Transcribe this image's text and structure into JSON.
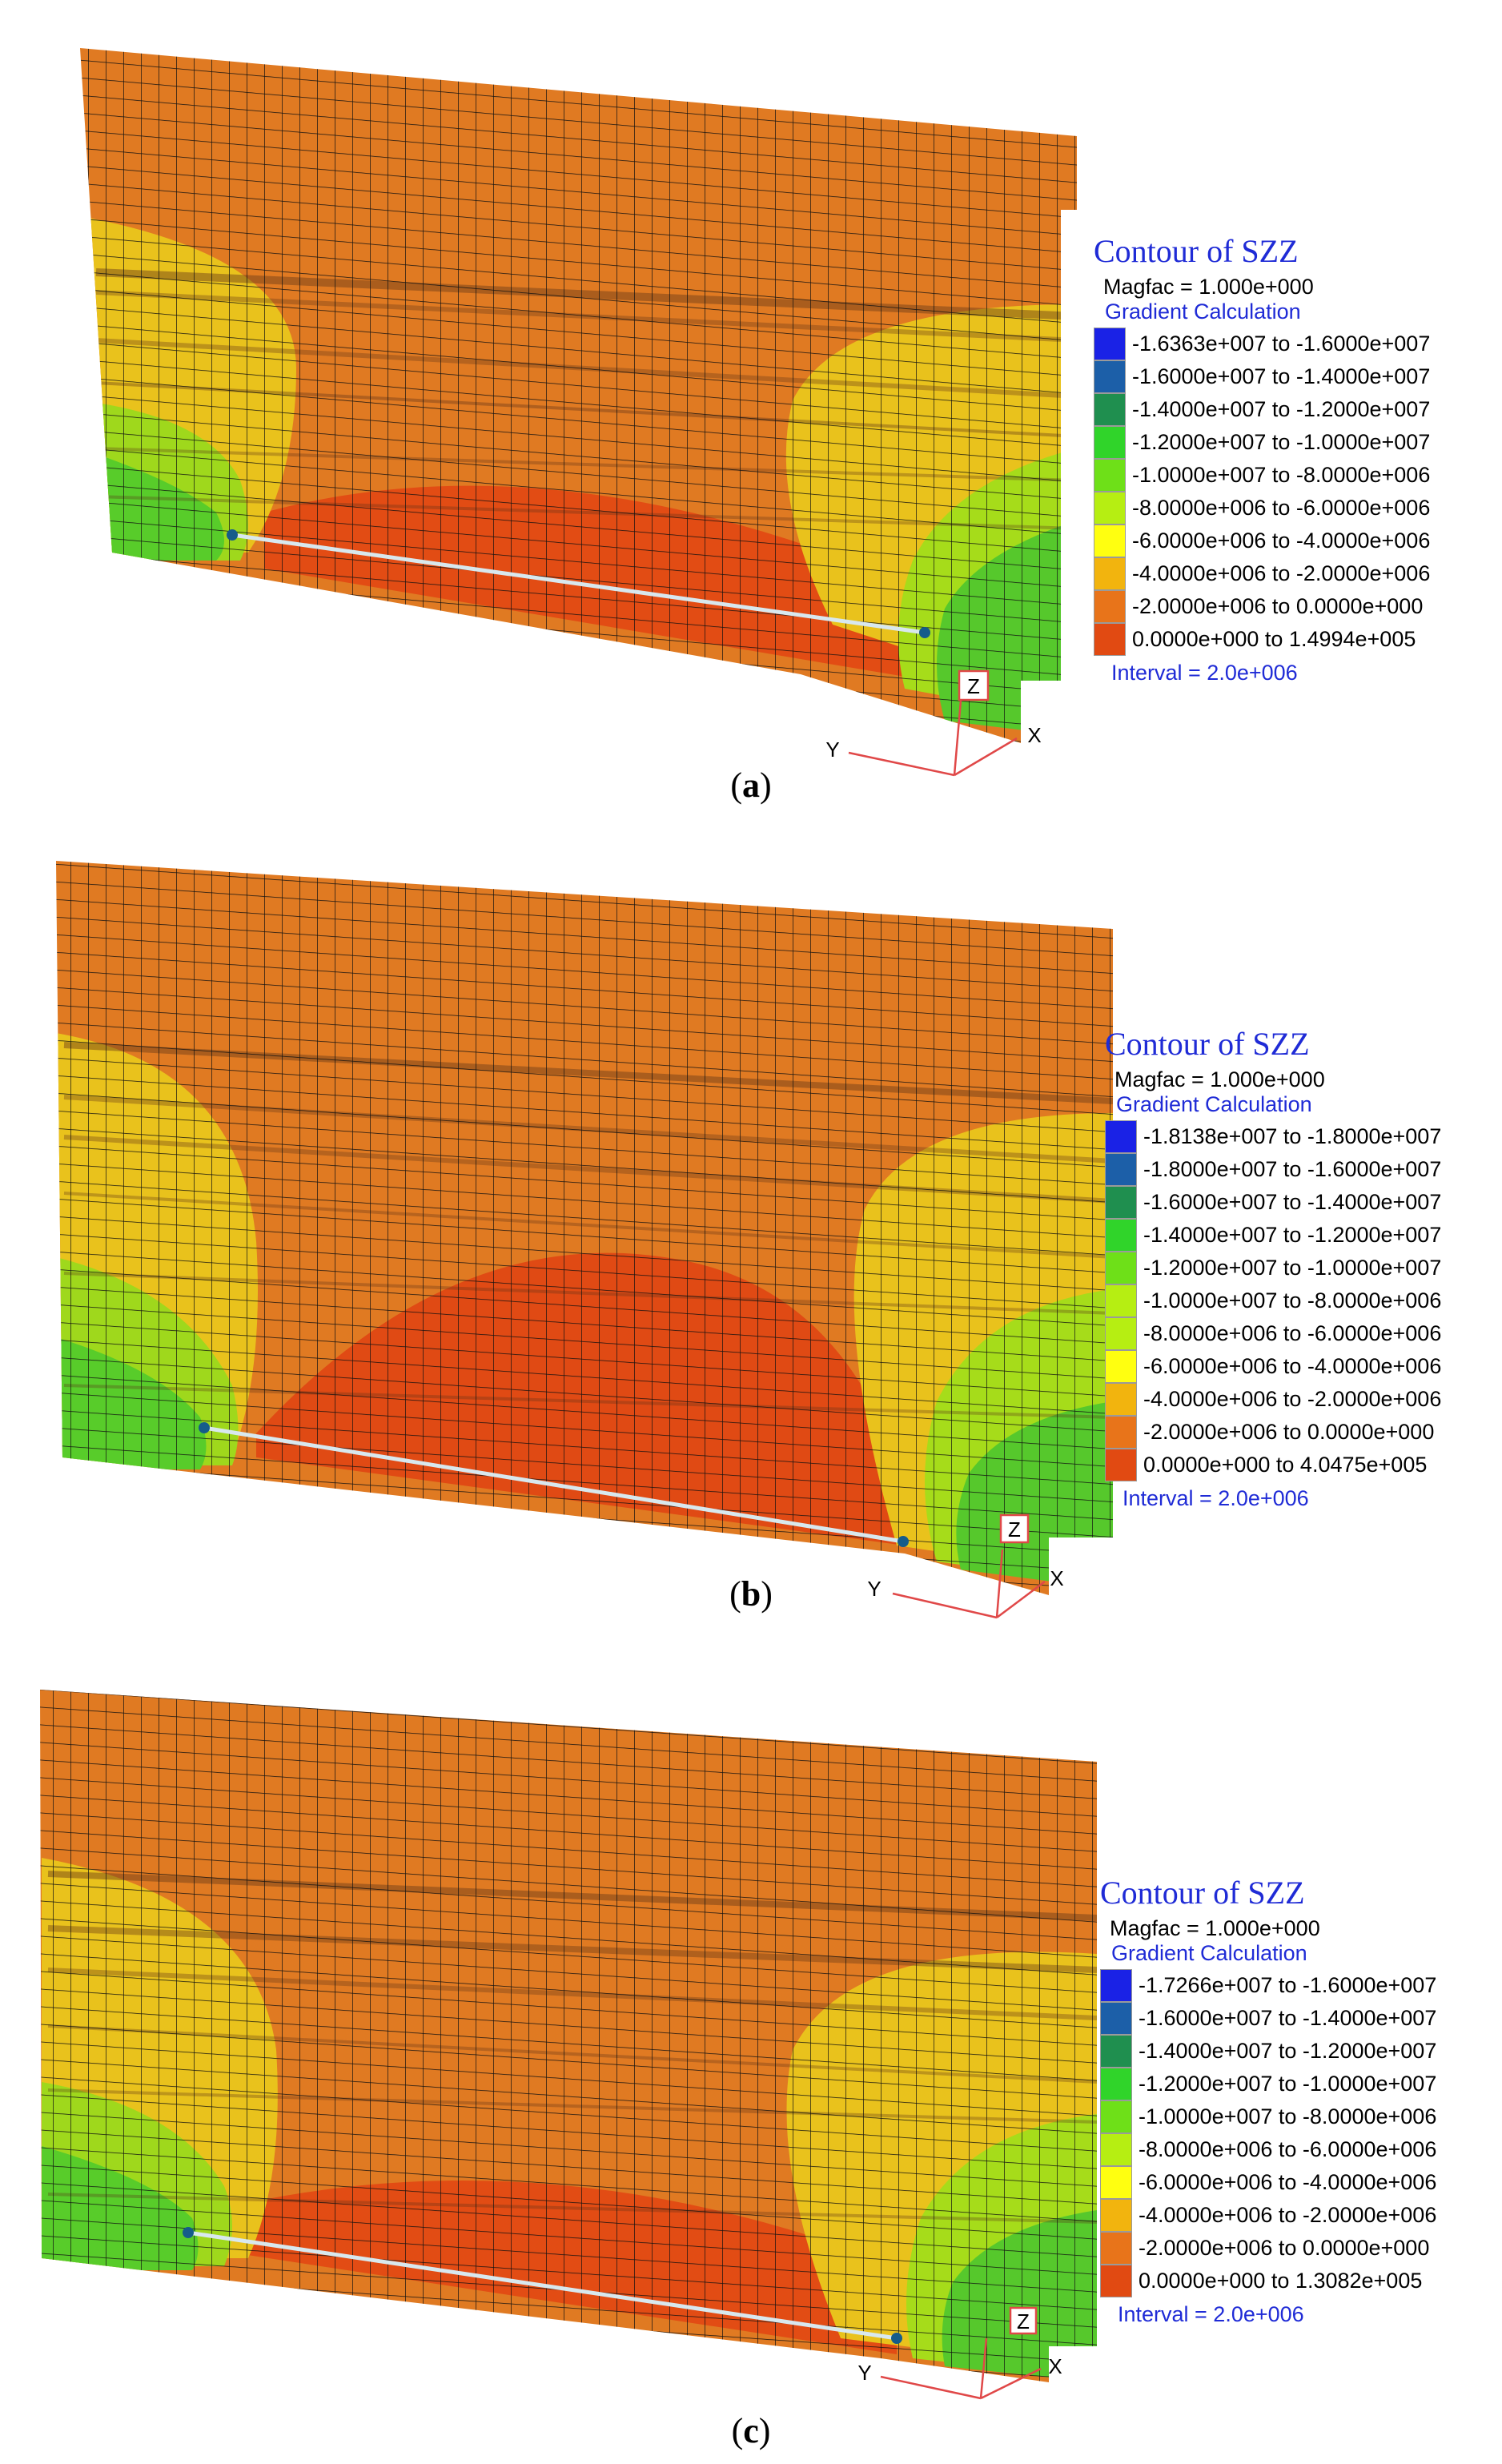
{
  "colors": [
    "#1a22e6",
    "#1c5fa8",
    "#1f8f4f",
    "#30d42a",
    "#6ee018",
    "#b6ee12",
    "#ffff10",
    "#f2b40e",
    "#e8741a",
    "#e14a12"
  ],
  "panels": [
    {
      "caption": "a",
      "legend": {
        "title": "Contour of SZZ",
        "magfac": "Magfac =  1.000e+000",
        "gradient": "Gradient Calculation",
        "interval": "Interval =  2.0e+006",
        "ranges": [
          "-1.6363e+007 to -1.6000e+007",
          "-1.6000e+007 to -1.4000e+007",
          "-1.4000e+007 to -1.2000e+007",
          "-1.2000e+007 to -1.0000e+007",
          "-1.0000e+007 to -8.0000e+006",
          "-8.0000e+006 to -6.0000e+006",
          "-6.0000e+006 to -4.0000e+006",
          "-4.0000e+006 to -2.0000e+006",
          "-2.0000e+006 to  0.0000e+000",
          " 0.0000e+000 to  1.4994e+005"
        ]
      },
      "axes": {
        "x": "X",
        "y": "Y",
        "z": "Z"
      }
    },
    {
      "caption": "b",
      "legend": {
        "title": "Contour of SZZ",
        "magfac": "Magfac =  1.000e+000",
        "gradient": "Gradient Calculation",
        "interval": "Interval =  2.0e+006",
        "ranges": [
          "-1.8138e+007 to -1.8000e+007",
          "-1.8000e+007 to -1.6000e+007",
          "-1.6000e+007 to -1.4000e+007",
          "-1.4000e+007 to -1.2000e+007",
          "-1.2000e+007 to -1.0000e+007",
          "-1.0000e+007 to -8.0000e+006",
          "-8.0000e+006 to -6.0000e+006",
          "-6.0000e+006 to -4.0000e+006",
          "-4.0000e+006 to -2.0000e+006",
          "-2.0000e+006 to  0.0000e+000",
          " 0.0000e+000 to  4.0475e+005"
        ]
      },
      "axes": {
        "x": "X",
        "y": "Y",
        "z": "Z"
      }
    },
    {
      "caption": "c",
      "legend": {
        "title": "Contour of SZZ",
        "magfac": "Magfac =  1.000e+000",
        "gradient": "Gradient Calculation",
        "interval": "Interval =  2.0e+006",
        "ranges": [
          "-1.7266e+007 to -1.6000e+007",
          "-1.6000e+007 to -1.4000e+007",
          "-1.4000e+007 to -1.2000e+007",
          "-1.2000e+007 to -1.0000e+007",
          "-1.0000e+007 to -8.0000e+006",
          "-8.0000e+006 to -6.0000e+006",
          "-6.0000e+006 to -4.0000e+006",
          "-4.0000e+006 to -2.0000e+006",
          "-2.0000e+006 to  0.0000e+000",
          " 0.0000e+000 to  1.3082e+005"
        ]
      },
      "axes": {
        "x": "X",
        "y": "Y",
        "z": "Z"
      }
    }
  ]
}
